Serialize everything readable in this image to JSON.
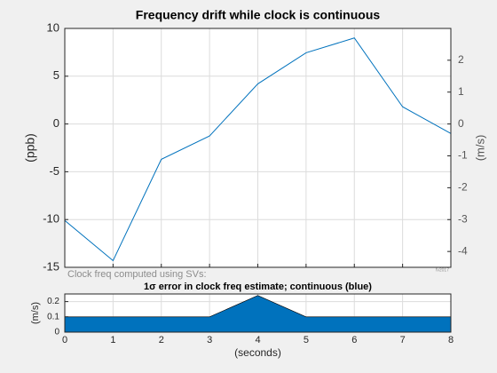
{
  "chart_data": [
    {
      "type": "line",
      "title": "Frequency drift while clock is continuous",
      "ylabel": "(ppb)",
      "y2label": "(m/s)",
      "x": [
        0,
        1,
        2,
        3,
        4,
        5,
        6,
        7,
        8
      ],
      "series": [
        {
          "color": "#0072bd",
          "values": [
            -10.1,
            -14.3,
            -3.7,
            -1.25,
            4.2,
            7.45,
            9.0,
            1.8,
            -1.0
          ]
        }
      ],
      "xlim": [
        0,
        8
      ],
      "xticks": [
        0,
        1,
        2,
        3,
        4,
        5,
        6,
        7,
        8
      ],
      "ylim": [
        -15,
        10
      ],
      "yticks": [
        -15,
        -10,
        -5,
        0,
        5,
        10
      ],
      "y2lim": [
        -4.497,
        2.998
      ],
      "y2ticks": [
        -4,
        -3,
        -2,
        -1,
        0,
        1,
        2
      ],
      "grid": true,
      "annotations": [
        "Clock freq computed using SVs:",
        "fv2017"
      ]
    },
    {
      "type": "area",
      "title": "1σ error in clock freq estimate; continuous (blue)",
      "ylabel": "(m/s)",
      "xlabel": "(seconds)",
      "x": [
        0,
        1,
        2,
        3,
        4,
        5,
        6,
        7,
        8
      ],
      "series": [
        {
          "color": "#0072bd",
          "values": [
            0.1,
            0.1,
            0.1,
            0.1,
            0.24,
            0.1,
            0.1,
            0.1,
            0.1
          ]
        }
      ],
      "xlim": [
        0,
        8
      ],
      "xticks": [
        0,
        1,
        2,
        3,
        4,
        5,
        6,
        7,
        8
      ],
      "ylim": [
        0,
        0.25
      ],
      "yticks": [
        0,
        0.1,
        0.2
      ],
      "grid": true
    }
  ]
}
